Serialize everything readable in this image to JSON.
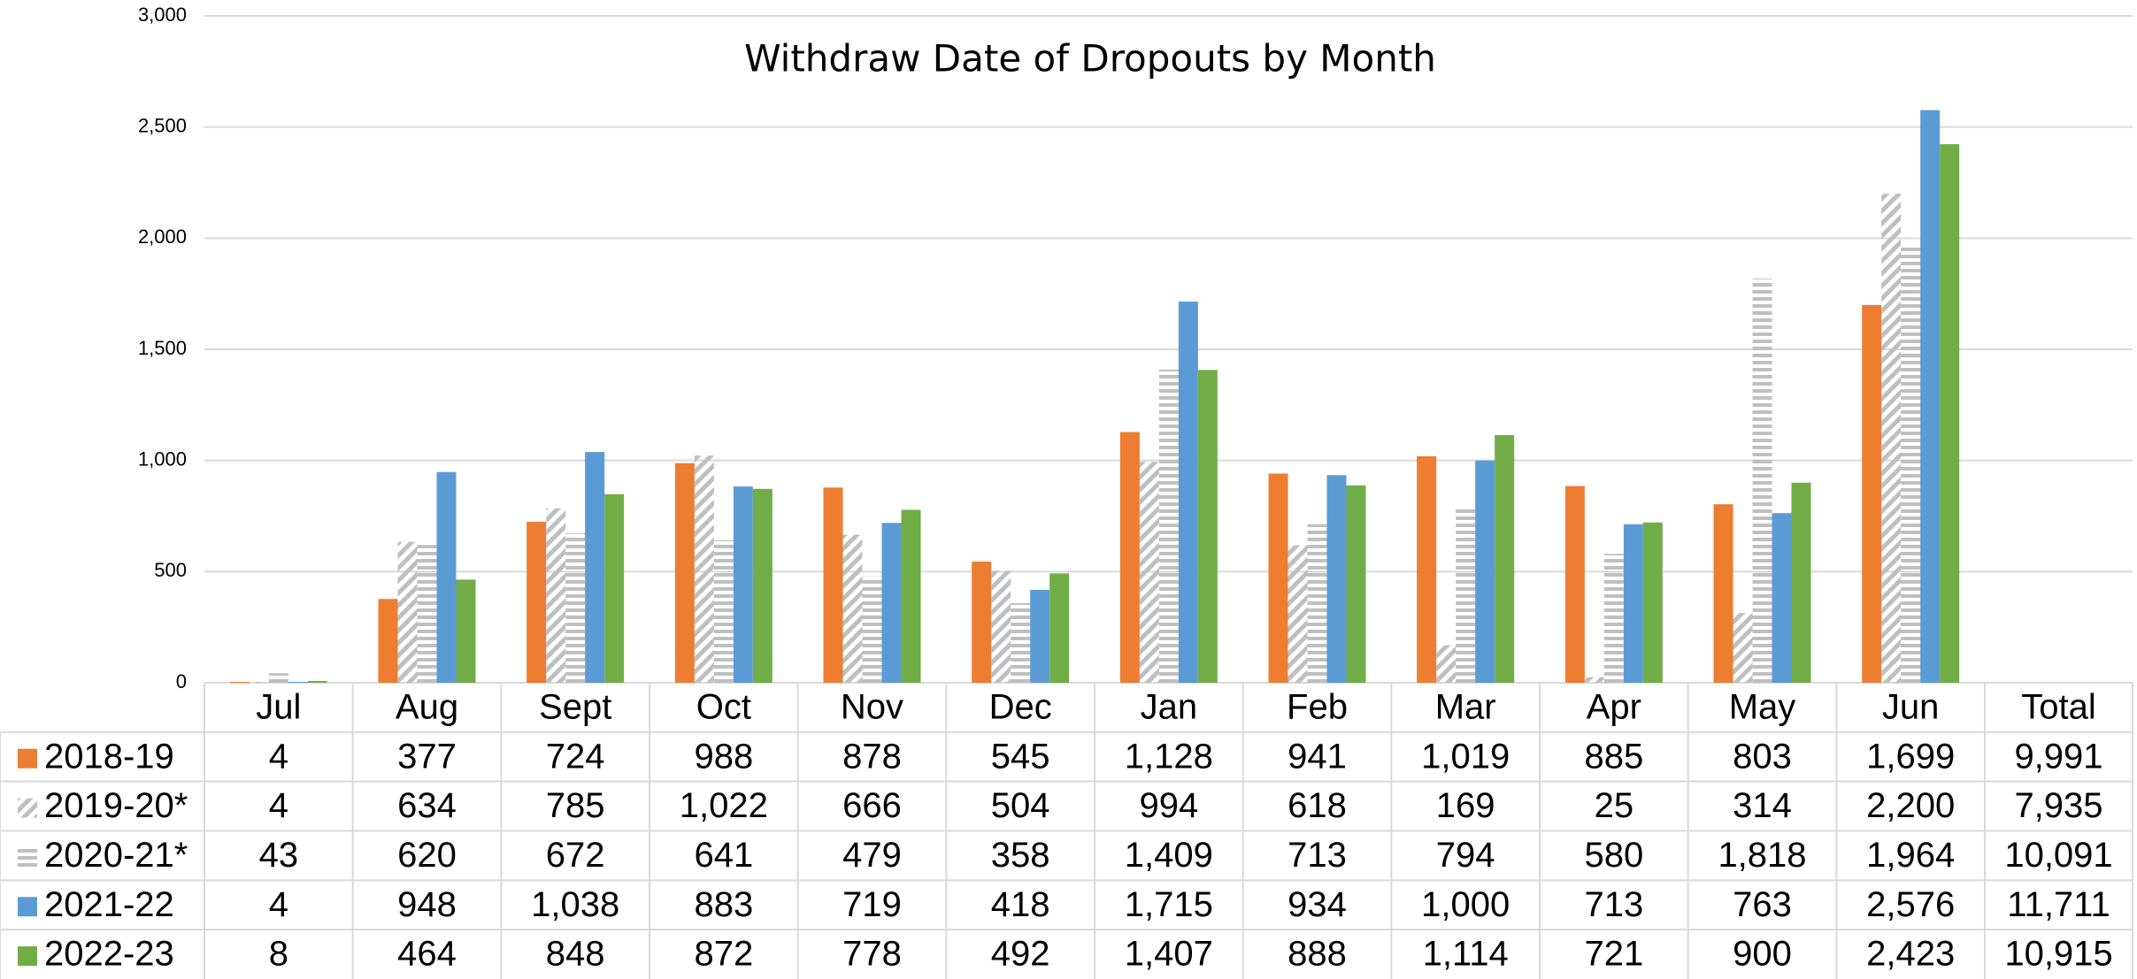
{
  "chart_data": {
    "type": "bar",
    "title": "Withdraw Date of Dropouts by Month",
    "categories": [
      "Jul",
      "Aug",
      "Sept",
      "Oct",
      "Nov",
      "Dec",
      "Jan",
      "Feb",
      "Mar",
      "Apr",
      "May",
      "Jun"
    ],
    "total_header": "Total",
    "ylim": [
      0,
      3000
    ],
    "yticks": [
      0,
      500,
      {
        "value": 1000,
        "label": "1,000"
      },
      {
        "value": 1500,
        "label": "1,500"
      },
      {
        "value": 2000,
        "label": "2,000"
      },
      {
        "value": 2500,
        "label": "2,500"
      },
      {
        "value": 3000,
        "label": "3,000"
      }
    ],
    "grid": true,
    "series": [
      {
        "name": "2018-19",
        "color": "#ed7d31",
        "pattern": "solid",
        "values": [
          4,
          377,
          724,
          988,
          878,
          545,
          1128,
          941,
          1019,
          885,
          803,
          1699
        ],
        "value_labels": [
          "4",
          "377",
          "724",
          "988",
          "878",
          "545",
          "1,128",
          "941",
          "1,019",
          "885",
          "803",
          "1,699"
        ],
        "total": 9991,
        "total_label": "9,991"
      },
      {
        "name": "2019-20*",
        "color": "#bfbfbf",
        "pattern": "diagonal",
        "values": [
          4,
          634,
          785,
          1022,
          666,
          504,
          994,
          618,
          169,
          25,
          314,
          2200
        ],
        "value_labels": [
          "4",
          "634",
          "785",
          "1,022",
          "666",
          "504",
          "994",
          "618",
          "169",
          "25",
          "314",
          "2,200"
        ],
        "total": 7935,
        "total_label": "7,935"
      },
      {
        "name": "2020-21*",
        "color": "#bfbfbf",
        "pattern": "horizontal",
        "values": [
          43,
          620,
          672,
          641,
          479,
          358,
          1409,
          713,
          794,
          580,
          1818,
          1964
        ],
        "value_labels": [
          "43",
          "620",
          "672",
          "641",
          "479",
          "358",
          "1,409",
          "713",
          "794",
          "580",
          "1,818",
          "1,964"
        ],
        "total": 10091,
        "total_label": "10,091"
      },
      {
        "name": "2021-22",
        "color": "#5b9bd5",
        "pattern": "solid",
        "values": [
          4,
          948,
          1038,
          883,
          719,
          418,
          1715,
          934,
          1000,
          713,
          763,
          2576
        ],
        "value_labels": [
          "4",
          "948",
          "1,038",
          "883",
          "719",
          "418",
          "1,715",
          "934",
          "1,000",
          "713",
          "763",
          "2,576"
        ],
        "total": 11711,
        "total_label": "11,711"
      },
      {
        "name": "2022-23",
        "color": "#70ad47",
        "pattern": "solid",
        "values": [
          8,
          464,
          848,
          872,
          778,
          492,
          1407,
          888,
          1114,
          721,
          900,
          2423
        ],
        "value_labels": [
          "8",
          "464",
          "848",
          "872",
          "778",
          "492",
          "1,407",
          "888",
          "1,114",
          "721",
          "900",
          "2,423"
        ],
        "total": 10915,
        "total_label": "10,915"
      }
    ]
  }
}
